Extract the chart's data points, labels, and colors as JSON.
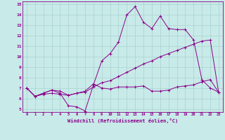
{
  "xlabel": "Windchill (Refroidissement éolien,°C)",
  "background_color": "#c8eae8",
  "line_color": "#8b008b",
  "grid_color": "#a8d4d0",
  "xlim": [
    -0.5,
    23.5
  ],
  "ylim": [
    4.7,
    15.3
  ],
  "xticks": [
    0,
    1,
    2,
    3,
    4,
    5,
    6,
    7,
    8,
    9,
    10,
    11,
    12,
    13,
    14,
    15,
    16,
    17,
    18,
    19,
    20,
    21,
    22,
    23
  ],
  "yticks": [
    5,
    6,
    7,
    8,
    9,
    10,
    11,
    12,
    13,
    14,
    15
  ],
  "series": [
    [
      7.0,
      6.2,
      6.5,
      6.8,
      6.5,
      5.3,
      5.2,
      4.8,
      7.3,
      9.6,
      10.3,
      11.4,
      14.0,
      14.8,
      13.3,
      12.7,
      13.9,
      12.7,
      12.6,
      12.6,
      11.6,
      7.8,
      7.0,
      6.6
    ],
    [
      7.0,
      6.2,
      6.5,
      6.8,
      6.7,
      6.3,
      6.5,
      6.7,
      7.4,
      7.0,
      6.9,
      7.1,
      7.1,
      7.1,
      7.2,
      6.7,
      6.7,
      6.8,
      7.1,
      7.2,
      7.3,
      7.6,
      7.8,
      6.6
    ],
    [
      7.0,
      6.2,
      6.4,
      6.5,
      6.4,
      6.3,
      6.5,
      6.6,
      7.1,
      7.5,
      7.7,
      8.1,
      8.5,
      8.9,
      9.3,
      9.6,
      10.0,
      10.3,
      10.6,
      10.9,
      11.2,
      11.5,
      11.6,
      6.6
    ]
  ]
}
